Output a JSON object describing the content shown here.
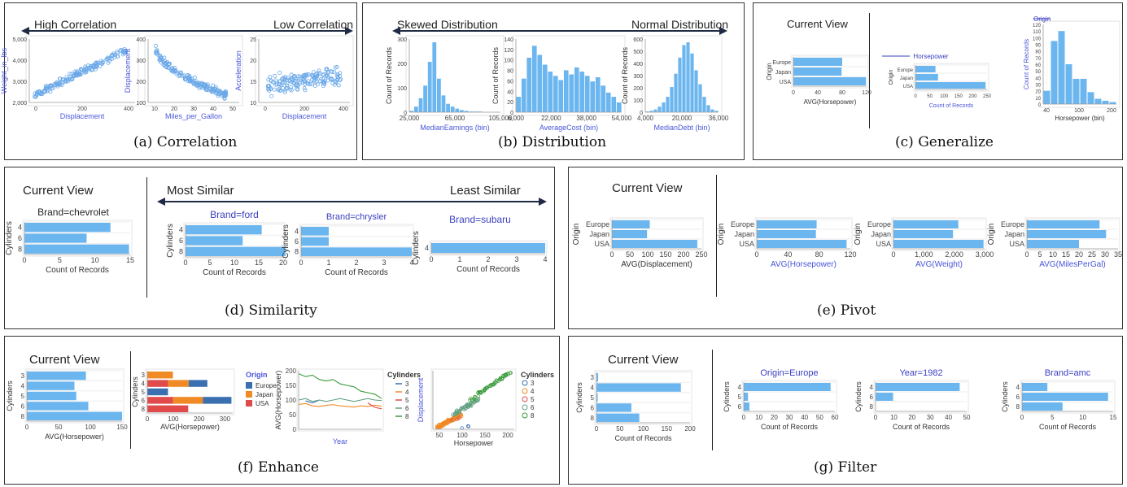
{
  "panels": {
    "a": {
      "caption": "(a) Correlation",
      "left": "High Correlation",
      "right": "Low Correlation",
      "charts": [
        {
          "x_label": "Displacement",
          "y_label": "Weight_in_lbs",
          "x_ticks": [
            "0",
            "200",
            "400"
          ],
          "y_ticks": [
            "2,000",
            "3,000",
            "4,000",
            "5,000"
          ]
        },
        {
          "x_label": "Miles_per_Gallon",
          "y_label": "Displacement",
          "x_ticks": [
            "10",
            "20",
            "30",
            "40",
            "50"
          ],
          "y_ticks": [
            "100",
            "200",
            "300",
            "400"
          ]
        },
        {
          "x_label": "Displacement",
          "y_label": "Acceleration",
          "x_ticks": [
            "0",
            "200",
            "400"
          ],
          "y_ticks": [
            "10",
            "15",
            "20",
            "25"
          ]
        }
      ]
    },
    "b": {
      "caption": "(b) Distribution",
      "left": "Skewed Distribution",
      "right": "Normal Distribution",
      "charts": [
        {
          "x_label": "MedianEarnings (bin)",
          "y_label": "Count of Records",
          "x_ticks": [
            "25,000",
            "65,000",
            "105,000"
          ],
          "y_ticks": [
            "0",
            "100",
            "200",
            "300"
          ]
        },
        {
          "x_label": "AverageCost (bin)",
          "y_label": "Count of Records",
          "x_ticks": [
            "6,000",
            "22,000",
            "38,000",
            "54,000"
          ],
          "y_ticks": [
            "0",
            "20",
            "40",
            "60",
            "80",
            "100",
            "120",
            "140"
          ]
        },
        {
          "x_label": "MedianDebt (bin)",
          "y_label": "Count of Records",
          "x_ticks": [
            "4,000",
            "20,000",
            "36,000"
          ],
          "y_ticks": [
            "0",
            "100",
            "200",
            "300",
            "400",
            "500",
            "600"
          ]
        }
      ]
    },
    "c": {
      "caption": "(c) Generalize",
      "current_view": "Current View",
      "chart1": {
        "y_label": "Origin",
        "x_label": "AVG(Horsepower)",
        "categories": [
          "Europe",
          "Japan",
          "USA"
        ],
        "x_ticks": [
          "0",
          "40",
          "80",
          "120"
        ]
      },
      "chart2": {
        "title": "Horsepower",
        "y_label": "Origin",
        "x_label": "Count of Records",
        "categories": [
          "Europe",
          "Japan",
          "USA"
        ],
        "x_ticks": [
          "0",
          "50",
          "100",
          "150",
          "200",
          "250"
        ]
      },
      "chart3": {
        "title": "Origin",
        "y_label": "Count of Records",
        "x_label": "Horsepower (bin)",
        "x_ticks": [
          "40",
          "100",
          "200"
        ],
        "y_ticks": [
          "0",
          "10",
          "20",
          "30",
          "40",
          "50",
          "60",
          "70",
          "80",
          "90",
          "100",
          "110",
          "120"
        ]
      }
    },
    "d": {
      "caption": "(d) Similarity",
      "current_view": "Current View",
      "left": "Most Similar",
      "right": "Least Similar",
      "charts": [
        {
          "title": "Brand=chevrolet",
          "y_label": "Cylinders",
          "x_label": "Count of Records",
          "x_ticks": [
            "0",
            "5",
            "10",
            "15"
          ],
          "categories": [
            "4",
            "6",
            "8"
          ]
        },
        {
          "title": "Brand=ford",
          "y_label": "Cylinders",
          "x_label": "Count of Records",
          "x_ticks": [
            "0",
            "5",
            "10",
            "15",
            "20"
          ],
          "categories": [
            "4",
            "6",
            "8"
          ]
        },
        {
          "title": "Brand=chrysler",
          "y_label": "Cylinders",
          "x_label": "Count of Records",
          "x_ticks": [
            "0",
            "1",
            "2",
            "3",
            "4"
          ],
          "categories": [
            "4",
            "6",
            "8"
          ]
        },
        {
          "title": "Brand=subaru",
          "y_label": "Cylinders",
          "x_label": "Count of Records",
          "x_ticks": [
            "0",
            "1",
            "2",
            "3",
            "4"
          ],
          "categories": [
            "4"
          ]
        }
      ]
    },
    "e": {
      "caption": "(e) Pivot",
      "current_view": "Current View",
      "charts": [
        {
          "x_label": "AVG(Displacement)",
          "y_label": "Origin",
          "categories": [
            "Europe",
            "Japan",
            "USA"
          ],
          "x_ticks": [
            "0",
            "50",
            "100",
            "150",
            "200",
            "250"
          ]
        },
        {
          "x_label": "AVG(Horsepower)",
          "y_label": "Origin",
          "categories": [
            "Europe",
            "Japan",
            "USA"
          ],
          "x_ticks": [
            "0",
            "40",
            "80",
            "120"
          ]
        },
        {
          "x_label": "AVG(Weight)",
          "y_label": "Origin",
          "categories": [
            "Europe",
            "Japan",
            "USA"
          ],
          "x_ticks": [
            "0",
            "1,000",
            "2,000",
            "3,000"
          ]
        },
        {
          "x_label": "AVG(MilesPerGal)",
          "y_label": "Origin",
          "categories": [
            "Europe",
            "Japan",
            "USA"
          ],
          "x_ticks": [
            "0",
            "5",
            "10",
            "15",
            "20",
            "25",
            "30",
            "35"
          ]
        }
      ]
    },
    "f": {
      "caption": "(f) Enhance",
      "current_view": "Current View",
      "chart1": {
        "y_label": "Cylinders",
        "x_label": "AVG(Horsepower)",
        "categories": [
          "3",
          "4",
          "5",
          "6",
          "8"
        ],
        "x_ticks": [
          "0",
          "50",
          "100",
          "150"
        ]
      },
      "chart2": {
        "y_label": "Cylinders",
        "x_label": "AVG(Horsepower)",
        "categories": [
          "3",
          "4",
          "5",
          "6",
          "8"
        ],
        "x_ticks": [
          "0",
          "100",
          "200",
          "300"
        ],
        "legend_title": "Origin",
        "legend": [
          "Europe",
          "Japan",
          "USA"
        ]
      },
      "chart3": {
        "y_label": "AVG(Horsepower)",
        "x_label": "Year",
        "y_ticks": [
          "0",
          "50",
          "100",
          "150",
          "200"
        ],
        "legend_title": "Cylinders",
        "legend": [
          "3",
          "4",
          "5",
          "6",
          "8"
        ]
      },
      "chart4": {
        "y_label": "Displacement",
        "x_label": "Horsepower",
        "x_ticks": [
          "50",
          "100",
          "150",
          "200"
        ],
        "legend_title": "Cylinders",
        "legend": [
          "3",
          "4",
          "5",
          "6",
          "8"
        ]
      }
    },
    "g": {
      "caption": "(g) Filter",
      "current_view": "Current View",
      "charts": [
        {
          "y_label": "Cylinders",
          "x_label": "Count of Records",
          "categories": [
            "3",
            "4",
            "5",
            "6",
            "8"
          ],
          "x_ticks": [
            "0",
            "50",
            "100",
            "150",
            "200"
          ]
        },
        {
          "title": "Origin=Europe",
          "y_label": "Cylinders",
          "x_label": "Count of Records",
          "categories": [
            "4",
            "5",
            "6"
          ],
          "x_ticks": [
            "0",
            "10",
            "20",
            "30",
            "40",
            "50",
            "60"
          ]
        },
        {
          "title": "Year=1982",
          "y_label": "Cylinders",
          "x_label": "Count of Records",
          "categories": [
            "4",
            "6",
            "8"
          ],
          "x_ticks": [
            "0",
            "10",
            "20",
            "30",
            "40",
            "50"
          ]
        },
        {
          "title": "Brand=amc",
          "y_label": "Cylinders",
          "x_label": "Count of Records",
          "categories": [
            "4",
            "6",
            "8"
          ],
          "x_ticks": [
            "0",
            "5",
            "10",
            "15"
          ]
        }
      ]
    }
  },
  "colors": {
    "bar": "#6cb6f0",
    "dot": "#6aa8e8",
    "europe": "#3a6fb0",
    "japan": "#f08a24",
    "usa": "#e04a4a",
    "axis_label": "#4a56d8"
  }
}
